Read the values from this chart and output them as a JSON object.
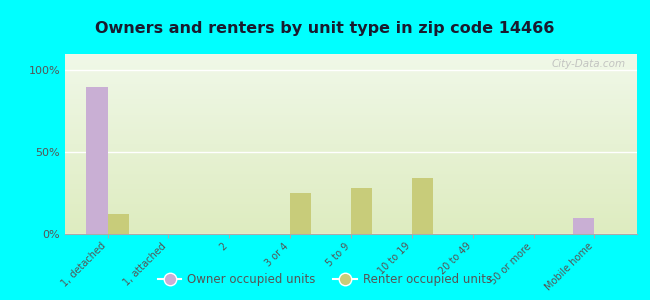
{
  "title": "Owners and renters by unit type in zip code 14466",
  "categories": [
    "1, detached",
    "1, attached",
    "2",
    "3 or 4",
    "5 to 9",
    "10 to 19",
    "20 to 49",
    "50 or more",
    "Mobile home"
  ],
  "owner_values": [
    90,
    0,
    0,
    0,
    0,
    0,
    0,
    0,
    10
  ],
  "renter_values": [
    12,
    0,
    0,
    25,
    28,
    34,
    0,
    0,
    0
  ],
  "owner_color": "#c9afd4",
  "renter_color": "#c8cc7a",
  "background_color": "#00ffff",
  "plot_bg_color": "#edf5dc",
  "yticks": [
    0,
    50,
    100
  ],
  "ylim": [
    0,
    110
  ],
  "ylabel_labels": [
    "0%",
    "50%",
    "100%"
  ],
  "bar_width": 0.35,
  "watermark": "City-Data.com",
  "legend_owner": "Owner occupied units",
  "legend_renter": "Renter occupied units",
  "title_color": "#1a1a2e",
  "tick_label_color": "#555555"
}
